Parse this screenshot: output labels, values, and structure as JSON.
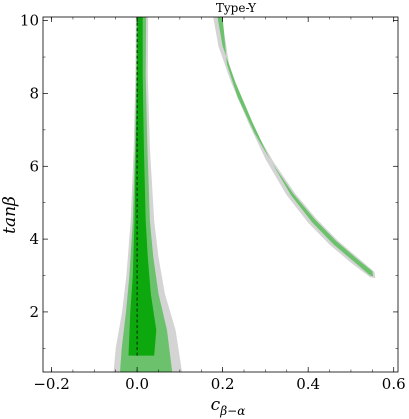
{
  "chart_data": {
    "type": "area",
    "title": "Type-Y",
    "xlabel": "c",
    "xlabel_sub": "β−α",
    "ylabel": "tanβ",
    "xlim": [
      -0.22,
      0.61
    ],
    "ylim": [
      0.35,
      10.1
    ],
    "x_ticks": [
      -0.2,
      0.0,
      0.2,
      0.4,
      0.6
    ],
    "x_tick_labels": [
      "−0.2",
      "0.0",
      "0.2",
      "0.4",
      "0.6"
    ],
    "y_ticks": [
      2,
      4,
      6,
      8,
      10
    ],
    "y_tick_labels": [
      "2",
      "4",
      "6",
      "8",
      "10"
    ],
    "grid": false,
    "colors": {
      "outer_region": "#d4d4d4",
      "middle_region": "#6cc26c",
      "inner_region": "#0da80d",
      "reference_line": "#000000"
    },
    "regions": [
      {
        "kind": "central",
        "outer": [
          [
            -0.055,
            0.35
          ],
          [
            -0.05,
            1.0
          ],
          [
            -0.035,
            2.0
          ],
          [
            -0.025,
            3.0
          ],
          [
            -0.015,
            4.5
          ],
          [
            -0.008,
            6.5
          ],
          [
            -0.004,
            8.5
          ],
          [
            -0.003,
            10.1
          ],
          [
            0.026,
            10.1
          ],
          [
            0.025,
            8.5
          ],
          [
            0.03,
            6.5
          ],
          [
            0.04,
            4.5
          ],
          [
            0.05,
            3.5
          ],
          [
            0.065,
            2.5
          ],
          [
            0.09,
            1.5
          ],
          [
            0.105,
            0.35
          ]
        ],
        "middle": [
          [
            -0.04,
            0.35
          ],
          [
            -0.036,
            1.0
          ],
          [
            -0.026,
            2.0
          ],
          [
            -0.018,
            3.0
          ],
          [
            -0.01,
            4.5
          ],
          [
            -0.005,
            6.5
          ],
          [
            -0.002,
            8.5
          ],
          [
            -0.001,
            10.1
          ],
          [
            0.021,
            10.1
          ],
          [
            0.02,
            8.5
          ],
          [
            0.024,
            6.5
          ],
          [
            0.03,
            4.5
          ],
          [
            0.038,
            3.5
          ],
          [
            0.05,
            2.5
          ],
          [
            0.07,
            1.5
          ],
          [
            0.082,
            0.35
          ]
        ],
        "inner": [
          [
            -0.02,
            0.8
          ],
          [
            -0.016,
            2.0
          ],
          [
            -0.01,
            3.0
          ],
          [
            -0.006,
            4.5
          ],
          [
            -0.003,
            6.5
          ],
          [
            0.0,
            8.5
          ],
          [
            0.001,
            10.1
          ],
          [
            0.013,
            10.1
          ],
          [
            0.013,
            8.5
          ],
          [
            0.016,
            6.5
          ],
          [
            0.02,
            4.5
          ],
          [
            0.025,
            3.5
          ],
          [
            0.032,
            2.5
          ],
          [
            0.045,
            1.5
          ],
          [
            0.04,
            0.8
          ]
        ]
      },
      {
        "kind": "right-band",
        "outer": [
          [
            0.178,
            10.1
          ],
          [
            0.19,
            9.3
          ],
          [
            0.22,
            8.3
          ],
          [
            0.26,
            7.2
          ],
          [
            0.3,
            6.2
          ],
          [
            0.35,
            5.2
          ],
          [
            0.4,
            4.45
          ],
          [
            0.45,
            3.85
          ],
          [
            0.5,
            3.35
          ],
          [
            0.545,
            2.95
          ],
          [
            0.557,
            2.93
          ],
          [
            0.555,
            3.1
          ],
          [
            0.52,
            3.45
          ],
          [
            0.47,
            3.95
          ],
          [
            0.42,
            4.55
          ],
          [
            0.37,
            5.25
          ],
          [
            0.32,
            6.1
          ],
          [
            0.28,
            6.9
          ],
          [
            0.24,
            7.9
          ],
          [
            0.215,
            8.8
          ],
          [
            0.198,
            10.1
          ]
        ],
        "middle": [
          [
            0.188,
            10.1
          ],
          [
            0.2,
            9.3
          ],
          [
            0.23,
            8.3
          ],
          [
            0.27,
            7.2
          ],
          [
            0.31,
            6.2
          ],
          [
            0.36,
            5.2
          ],
          [
            0.41,
            4.45
          ],
          [
            0.46,
            3.85
          ],
          [
            0.51,
            3.35
          ],
          [
            0.545,
            3.0
          ],
          [
            0.552,
            2.98
          ],
          [
            0.55,
            3.12
          ],
          [
            0.515,
            3.45
          ],
          [
            0.465,
            3.95
          ],
          [
            0.415,
            4.55
          ],
          [
            0.365,
            5.25
          ],
          [
            0.315,
            6.1
          ],
          [
            0.275,
            6.9
          ],
          [
            0.235,
            7.9
          ],
          [
            0.21,
            8.8
          ],
          [
            0.2,
            10.1
          ]
        ]
      }
    ],
    "reference_line": {
      "x": 0.0,
      "style": "dashed",
      "y_from": 0.8,
      "y_to": 10.1
    }
  }
}
